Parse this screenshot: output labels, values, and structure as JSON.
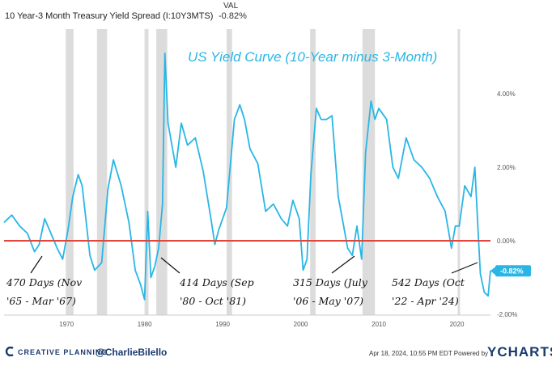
{
  "header": {
    "title": "10 Year-3 Month Treasury Yield Spread (I:10Y3MTS)",
    "val_label": "VAL",
    "val": "-0.82%"
  },
  "footer": {
    "brand": "CREATIVE PLANNING",
    "handle": "@CharlieBilello",
    "source": "Apr 18, 2024, 10:55 PM EDT Powered by",
    "logo": "YCHARTS"
  },
  "chart_data": {
    "type": "line",
    "title": "US Yield Curve (10-Year minus 3-Month)",
    "xlim": [
      1962,
      2024.3
    ],
    "ylim": [
      -2.0,
      5.2
    ],
    "x_ticks": [
      1970,
      1980,
      1990,
      2000,
      2010,
      2020
    ],
    "y_ticks": [
      {
        "value": 4,
        "label": "4.00%"
      },
      {
        "value": 2,
        "label": "2.00%"
      },
      {
        "value": 0,
        "label": "0.00%"
      },
      {
        "value": -2,
        "label": "-2.00%"
      }
    ],
    "current_value": {
      "value": -0.82,
      "label": "-0.82%"
    },
    "recessions": [
      [
        1969.9,
        1970.9
      ],
      [
        1973.9,
        1975.2
      ],
      [
        1980.0,
        1980.5
      ],
      [
        1981.5,
        1982.9
      ],
      [
        1990.5,
        1991.2
      ],
      [
        2001.2,
        2001.9
      ],
      [
        2007.9,
        2009.5
      ],
      [
        2020.1,
        2020.4
      ]
    ],
    "series": [
      {
        "color": "#29b6e6",
        "x": [
          1962.0,
          1963.0,
          1964.0,
          1965.0,
          1965.9,
          1966.5,
          1967.2,
          1968.0,
          1968.8,
          1969.5,
          1970.2,
          1970.8,
          1971.5,
          1972.0,
          1973.0,
          1973.6,
          1974.5,
          1975.3,
          1976.0,
          1977.0,
          1978.0,
          1978.8,
          1979.5,
          1980.0,
          1980.4,
          1980.8,
          1981.3,
          1981.8,
          1982.3,
          1982.6,
          1983.0,
          1984.0,
          1984.7,
          1985.5,
          1986.5,
          1987.5,
          1988.5,
          1989.0,
          1989.5,
          1990.5,
          1991.5,
          1992.2,
          1992.8,
          1993.5,
          1994.5,
          1995.5,
          1996.5,
          1997.5,
          1998.3,
          1999.0,
          1999.8,
          2000.3,
          2000.8,
          2001.3,
          2002.0,
          2002.6,
          2003.3,
          2004.0,
          2004.8,
          2005.5,
          2006.0,
          2006.6,
          2007.2,
          2007.8,
          2008.3,
          2009.0,
          2009.5,
          2010.0,
          2011.0,
          2011.8,
          2012.5,
          2013.5,
          2014.5,
          2015.5,
          2016.5,
          2017.5,
          2018.5,
          2019.3,
          2019.8,
          2020.3,
          2021.0,
          2021.8,
          2022.3,
          2022.7,
          2023.0,
          2023.5,
          2024.0,
          2024.3
        ],
        "y": [
          0.5,
          0.7,
          0.4,
          0.2,
          -0.3,
          -0.1,
          0.6,
          0.2,
          -0.2,
          -0.5,
          0.3,
          1.2,
          1.8,
          1.5,
          -0.4,
          -0.8,
          -0.6,
          1.4,
          2.2,
          1.5,
          0.5,
          -0.8,
          -1.2,
          -1.6,
          0.8,
          -1.0,
          -0.7,
          -0.2,
          1.0,
          5.1,
          3.2,
          2.0,
          3.2,
          2.6,
          2.8,
          1.9,
          0.6,
          -0.1,
          0.3,
          0.9,
          3.3,
          3.7,
          3.3,
          2.5,
          2.1,
          0.8,
          1.0,
          0.6,
          0.4,
          1.1,
          0.6,
          -0.8,
          -0.5,
          1.8,
          3.6,
          3.3,
          3.3,
          3.4,
          1.2,
          0.4,
          -0.2,
          -0.4,
          0.4,
          -0.5,
          2.4,
          3.8,
          3.3,
          3.6,
          3.3,
          2.0,
          1.7,
          2.8,
          2.2,
          2.0,
          1.7,
          1.2,
          0.8,
          -0.2,
          0.4,
          0.4,
          1.5,
          1.2,
          2.0,
          0.3,
          -0.9,
          -1.4,
          -1.5,
          -0.8
        ]
      }
    ],
    "annotations": [
      {
        "line1": "470 Days (Nov",
        "line2": "'65 - Mar '67)"
      },
      {
        "line1": "414 Days (Sep",
        "line2": "'80 - Oct '81)"
      },
      {
        "line1": "315 Days (July",
        "line2": "'06 - May '07)"
      },
      {
        "line1": "542 Days (Oct",
        "line2": "'22 - Apr '24)"
      }
    ]
  }
}
